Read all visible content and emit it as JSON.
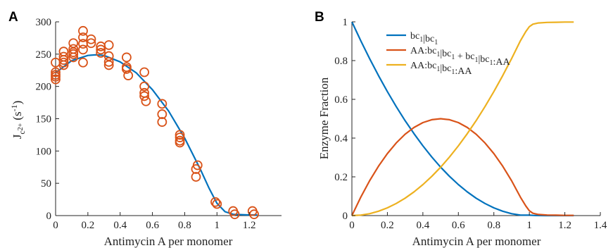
{
  "chart_data": [
    {
      "type": "scatter",
      "panel_label": "A",
      "xlabel": "Antimycin A per monomer",
      "ylabel_main": "J",
      "ylabel_sub": "c",
      "ylabel_subsup": "2+",
      "ylabel_unit": "(s",
      "ylabel_unit_sup": "-1",
      "ylabel_unit_end": ")",
      "xlim": [
        0,
        1.4
      ],
      "ylim": [
        0,
        300
      ],
      "xticks": [
        0,
        0.2,
        0.4,
        0.6,
        0.8,
        1,
        1.2
      ],
      "xtick_labels": [
        "0",
        "0.2",
        "0.4",
        "0.6",
        "0.8",
        "1",
        "1.2"
      ],
      "yticks": [
        0,
        50,
        100,
        150,
        200,
        250,
        300
      ],
      "ytick_labels": [
        "0",
        "50",
        "100",
        "150",
        "200",
        "250",
        "300"
      ],
      "marker_color": "#D95319",
      "fit_color": "#0072BD",
      "points": [
        [
          0,
          237
        ],
        [
          0,
          222
        ],
        [
          0,
          218
        ],
        [
          0,
          215
        ],
        [
          0,
          211
        ],
        [
          0.05,
          254
        ],
        [
          0.05,
          246
        ],
        [
          0.05,
          241
        ],
        [
          0.05,
          237
        ],
        [
          0.05,
          233
        ],
        [
          0.11,
          267
        ],
        [
          0.11,
          258
        ],
        [
          0.11,
          253
        ],
        [
          0.11,
          250
        ],
        [
          0.11,
          245
        ],
        [
          0.17,
          286
        ],
        [
          0.17,
          276
        ],
        [
          0.17,
          266
        ],
        [
          0.17,
          257
        ],
        [
          0.17,
          237
        ],
        [
          0.22,
          273
        ],
        [
          0.22,
          267
        ],
        [
          0.28,
          262
        ],
        [
          0.28,
          257
        ],
        [
          0.28,
          252
        ],
        [
          0.33,
          264
        ],
        [
          0.33,
          247
        ],
        [
          0.33,
          238
        ],
        [
          0.33,
          233
        ],
        [
          0.44,
          245
        ],
        [
          0.44,
          230
        ],
        [
          0.44,
          227
        ],
        [
          0.45,
          217
        ],
        [
          0.55,
          222
        ],
        [
          0.55,
          200
        ],
        [
          0.55,
          190
        ],
        [
          0.55,
          185
        ],
        [
          0.56,
          177
        ],
        [
          0.66,
          173
        ],
        [
          0.66,
          157
        ],
        [
          0.66,
          145
        ],
        [
          0.77,
          125
        ],
        [
          0.77,
          121
        ],
        [
          0.77,
          116
        ],
        [
          0.77,
          113
        ],
        [
          0.88,
          78
        ],
        [
          0.87,
          72
        ],
        [
          0.87,
          60
        ],
        [
          0.99,
          21
        ],
        [
          1.0,
          18
        ],
        [
          1.1,
          7
        ],
        [
          1.11,
          2
        ],
        [
          1.22,
          7
        ],
        [
          1.23,
          2
        ]
      ],
      "fit": {
        "x": [
          0,
          0.1,
          0.2,
          0.25,
          0.3,
          0.4,
          0.5,
          0.6,
          0.7,
          0.8,
          0.9,
          0.95,
          1.0,
          1.05,
          1.1,
          1.2,
          1.25
        ],
        "y": [
          221,
          240,
          248,
          249,
          248,
          238,
          221,
          195,
          162,
          120,
          70,
          43,
          19,
          6,
          2,
          1,
          1
        ]
      }
    },
    {
      "type": "line",
      "panel_label": "B",
      "xlabel": "Antimycin A per monomer",
      "ylabel": "Enzyme Fraction",
      "xlim": [
        0,
        1.4
      ],
      "ylim": [
        0,
        1
      ],
      "xticks": [
        0,
        0.2,
        0.4,
        0.6,
        0.8,
        1,
        1.2,
        1.4
      ],
      "xtick_labels": [
        "0",
        "0.2",
        "0.4",
        "0.6",
        "0.8",
        "1",
        "1.2",
        "1.4"
      ],
      "yticks": [
        0,
        0.2,
        0.4,
        0.6,
        0.8,
        1
      ],
      "ytick_labels": [
        "0",
        "0.2",
        "0.4",
        "0.6",
        "0.8",
        "1"
      ],
      "legend_position": "top-left",
      "series": [
        {
          "legend_parts": [
            [
              "bc",
              "1"
            ],
            [
              "|bc",
              "1"
            ]
          ],
          "color": "#0072BD",
          "x": [
            0,
            0.05,
            0.1,
            0.15,
            0.2,
            0.25,
            0.3,
            0.35,
            0.4,
            0.45,
            0.5,
            0.55,
            0.6,
            0.65,
            0.7,
            0.75,
            0.8,
            0.85,
            0.9,
            0.95,
            1.0,
            1.02,
            1.05,
            1.1,
            1.15,
            1.2,
            1.25
          ],
          "y": [
            1,
            0.9025,
            0.81,
            0.7225,
            0.64,
            0.5625,
            0.49,
            0.4225,
            0.36,
            0.3025,
            0.25,
            0.2025,
            0.16,
            0.1225,
            0.09,
            0.0625,
            0.04,
            0.0225,
            0.01,
            0.0025,
            0.002,
            0.001,
            0.0005,
            0,
            0,
            0,
            0
          ]
        },
        {
          "legend_parts": [
            [
              "AA:bc",
              "1"
            ],
            [
              "|bc",
              "1"
            ],
            [
              " + bc",
              "1"
            ],
            [
              "|bc",
              "1"
            ],
            [
              ":AA",
              ""
            ]
          ],
          "color": "#D95319",
          "x": [
            0,
            0.05,
            0.1,
            0.15,
            0.2,
            0.25,
            0.3,
            0.35,
            0.4,
            0.45,
            0.5,
            0.55,
            0.6,
            0.65,
            0.7,
            0.75,
            0.8,
            0.85,
            0.9,
            0.95,
            0.98,
            1.0,
            1.02,
            1.05,
            1.1,
            1.15,
            1.2,
            1.25
          ],
          "y": [
            0,
            0.095,
            0.18,
            0.255,
            0.32,
            0.375,
            0.42,
            0.455,
            0.48,
            0.495,
            0.5,
            0.495,
            0.48,
            0.455,
            0.42,
            0.375,
            0.32,
            0.255,
            0.18,
            0.095,
            0.05,
            0.025,
            0.012,
            0.006,
            0.003,
            0.002,
            0.001,
            0.001
          ]
        },
        {
          "legend_parts": [
            [
              "AA:bc",
              "1"
            ],
            [
              "|bc",
              "1"
            ],
            [
              ":AA",
              ""
            ]
          ],
          "color": "#EDB120",
          "x": [
            0,
            0.05,
            0.1,
            0.15,
            0.2,
            0.25,
            0.3,
            0.35,
            0.4,
            0.45,
            0.5,
            0.55,
            0.6,
            0.65,
            0.7,
            0.75,
            0.8,
            0.85,
            0.9,
            0.95,
            0.98,
            1.0,
            1.02,
            1.05,
            1.1,
            1.15,
            1.2,
            1.25
          ],
          "y": [
            0,
            0.0025,
            0.01,
            0.0225,
            0.04,
            0.0625,
            0.09,
            0.1225,
            0.16,
            0.2025,
            0.25,
            0.3025,
            0.36,
            0.4225,
            0.49,
            0.5625,
            0.64,
            0.7225,
            0.81,
            0.9025,
            0.95,
            0.975,
            0.988,
            0.994,
            0.997,
            0.998,
            0.999,
            0.999
          ]
        }
      ]
    }
  ]
}
